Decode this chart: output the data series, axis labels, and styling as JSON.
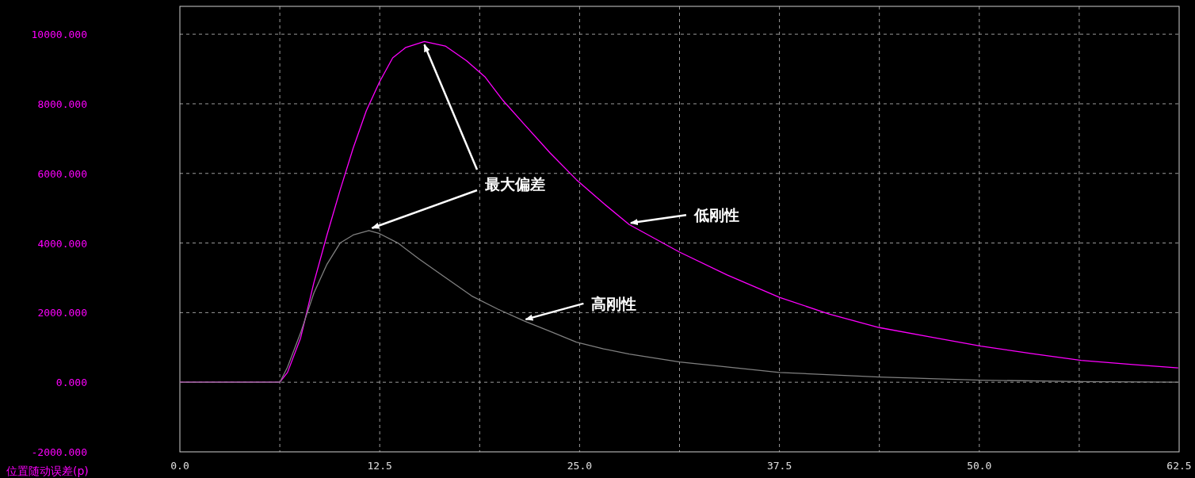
{
  "chart_data": {
    "type": "line",
    "ylabel": "位置随动误差(p)",
    "xlim": [
      0,
      62.5
    ],
    "ylim": [
      -2000,
      10800
    ],
    "xticks": [
      {
        "value": 0,
        "label": "0.0"
      },
      {
        "value": 6.25,
        "label": null
      },
      {
        "value": 12.5,
        "label": "12.5"
      },
      {
        "value": 18.75,
        "label": null
      },
      {
        "value": 25,
        "label": "25.0"
      },
      {
        "value": 31.25,
        "label": null
      },
      {
        "value": 37.5,
        "label": "37.5"
      },
      {
        "value": 43.75,
        "label": null
      },
      {
        "value": 50,
        "label": "50.0"
      },
      {
        "value": 56.25,
        "label": null
      },
      {
        "value": 62.5,
        "label": "62.5"
      }
    ],
    "yticks": [
      {
        "value": -2000,
        "label": "-2000.000"
      },
      {
        "value": 0,
        "label": "0.000"
      },
      {
        "value": 2000,
        "label": "2000.000"
      },
      {
        "value": 4000,
        "label": "4000.000"
      },
      {
        "value": 6000,
        "label": "6000.000"
      },
      {
        "value": 8000,
        "label": "8000.000"
      },
      {
        "value": 10000,
        "label": "10000.000"
      }
    ],
    "grid": true,
    "annotations": [
      {
        "text": "最大偏差",
        "x": 15.29,
        "y": 9790
      }
    ],
    "series": [
      {
        "name": "低刚性",
        "color": "#ff00ff",
        "x": [
          0,
          6.25,
          6.73,
          7.55,
          8.38,
          9.2,
          10.02,
          10.84,
          11.66,
          12.49,
          13.31,
          14.13,
          15.29,
          16.6,
          17.92,
          19.07,
          20.2,
          21.52,
          23.17,
          24.8,
          26.5,
          28.1,
          31.25,
          34.23,
          37.5,
          40.6,
          43.75,
          46.95,
          50.1,
          53.3,
          56.37,
          59.6,
          62.44
        ],
        "values": [
          0,
          0,
          280,
          1270,
          2860,
          4230,
          5520,
          6730,
          7800,
          8630,
          9320,
          9620,
          9790,
          9660,
          9240,
          8780,
          8100,
          7420,
          6580,
          5820,
          5140,
          4530,
          3740,
          3080,
          2440,
          1960,
          1570,
          1300,
          1040,
          820,
          630,
          510,
          410
        ]
      },
      {
        "name": "高刚性",
        "color": "#808080",
        "x": [
          0,
          6.25,
          6.73,
          7.55,
          8.38,
          9.2,
          10.02,
          10.84,
          11.82,
          12.49,
          13.64,
          14.96,
          16.6,
          18.25,
          19.89,
          21.53,
          23.17,
          24.8,
          26.5,
          28.1,
          31.25,
          37.5,
          43.75,
          50.1,
          56.37,
          62.44
        ],
        "values": [
          0,
          0,
          430,
          1420,
          2560,
          3390,
          4000,
          4230,
          4360,
          4270,
          4000,
          3540,
          3010,
          2480,
          2100,
          1760,
          1460,
          1150,
          960,
          810,
          580,
          280,
          150,
          60,
          20,
          0
        ]
      }
    ]
  }
}
